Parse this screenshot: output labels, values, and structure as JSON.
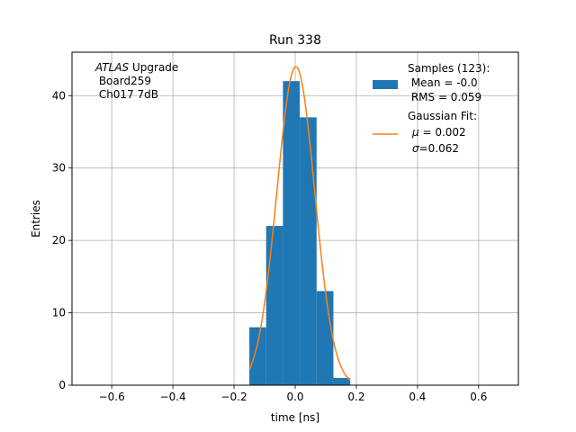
{
  "chart_data": {
    "type": "bar",
    "title": "Run 338",
    "xlabel": "time [ns]",
    "ylabel": "Entries",
    "xlim": [
      -0.73,
      0.73
    ],
    "ylim": [
      0,
      46
    ],
    "grid": true,
    "x_ticks": [
      -0.6,
      -0.4,
      -0.2,
      0.0,
      0.2,
      0.4,
      0.6
    ],
    "x_tick_labels": [
      "−0.6",
      "−0.4",
      "−0.2",
      "0.0",
      "0.2",
      "0.4",
      "0.6"
    ],
    "y_ticks": [
      0,
      10,
      20,
      30,
      40
    ],
    "y_tick_labels": [
      "0",
      "10",
      "20",
      "30",
      "40"
    ],
    "histogram": {
      "bin_edges": [
        -0.15,
        -0.095,
        -0.04,
        0.015,
        0.07,
        0.125,
        0.18
      ],
      "counts": [
        8,
        22,
        42,
        37,
        13,
        1
      ],
      "color": "#1f77b4"
    },
    "fit": {
      "name": "Gaussian Fit",
      "amplitude": 44,
      "mu": 0.002,
      "sigma": 0.062,
      "x_range": [
        -0.15,
        0.18
      ],
      "color": "#ff7f0e"
    },
    "annotation": {
      "line1_italic": "ATLAS",
      "line1_rest": " Upgrade",
      "line2": " Board259",
      "line3": " Ch017 7dB"
    },
    "legend": {
      "position": "top-right",
      "samples": {
        "line1": "Samples (123):",
        "line2": " Mean = -0.0",
        "line3": " RMS = 0.059"
      },
      "fit": {
        "line1": "Gaussian Fit:",
        "mu_symbol": "μ",
        "mu_text": " = 0.002",
        "sigma_symbol": "σ",
        "sigma_text": "=0.062"
      }
    }
  }
}
